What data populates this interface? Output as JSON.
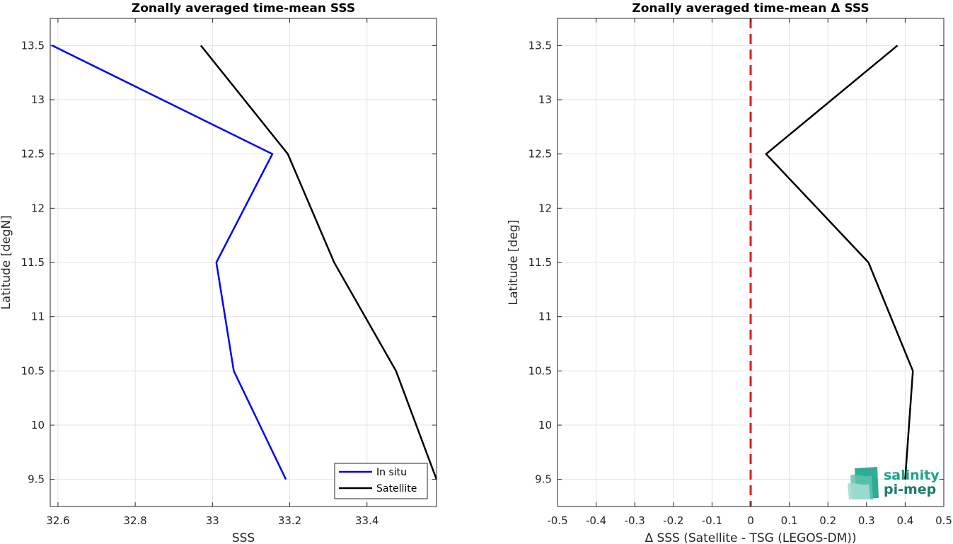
{
  "colors": {
    "in_situ": "#0000ff",
    "satellite": "#000000",
    "zero_line": "#e11a1a",
    "logo": "#1aa38a"
  },
  "logo": {
    "line1": "salinity",
    "line2": "pi-mep",
    "icon": "waves-logo-icon"
  },
  "chart_data": [
    {
      "type": "line",
      "title": "Zonally averaged time-mean SSS",
      "xlabel": "SSS",
      "ylabel": "Latitude [degN]",
      "xlim": [
        32.58,
        33.58
      ],
      "ylim": [
        9.25,
        13.75
      ],
      "xticks": [
        32.6,
        32.8,
        33,
        33.2,
        33.4
      ],
      "xtick_labels": [
        "32.6",
        "32.8",
        "33",
        "33.2",
        "33.4"
      ],
      "yticks": [
        9.5,
        10,
        10.5,
        11,
        11.5,
        12,
        12.5,
        13,
        13.5
      ],
      "ytick_labels": [
        "9.5",
        "10",
        "10.5",
        "11",
        "11.5",
        "12",
        "12.5",
        "13",
        "13.5"
      ],
      "grid": true,
      "legend_location": "bottom-right",
      "series": [
        {
          "name": "In situ",
          "color": "#0000ff",
          "x": [
            33.19,
            33.055,
            33.01,
            33.155,
            32.585
          ],
          "y": [
            9.5,
            10.5,
            11.5,
            12.5,
            13.5
          ]
        },
        {
          "name": "Satellite",
          "color": "#000000",
          "x": [
            33.58,
            33.475,
            33.315,
            33.195,
            32.97
          ],
          "y": [
            9.5,
            10.5,
            11.5,
            12.5,
            13.5
          ]
        }
      ]
    },
    {
      "type": "line",
      "title": "Zonally averaged time-mean Δ SSS",
      "xlabel": "Δ SSS (Satellite - TSG (LEGOS-DM))",
      "ylabel": "Latitude [deg]",
      "xlim": [
        -0.5,
        0.5
      ],
      "ylim": [
        9.25,
        13.75
      ],
      "xticks": [
        -0.5,
        -0.4,
        -0.3,
        -0.2,
        -0.1,
        0,
        0.1,
        0.2,
        0.3,
        0.4,
        0.5
      ],
      "xtick_labels": [
        "-0.5",
        "-0.4",
        "-0.3",
        "-0.2",
        "-0.1",
        "0",
        "0.1",
        "0.2",
        "0.3",
        "0.4",
        "0.5"
      ],
      "yticks": [
        9.5,
        10,
        10.5,
        11,
        11.5,
        12,
        12.5,
        13,
        13.5
      ],
      "ytick_labels": [
        "9.5",
        "10",
        "10.5",
        "11",
        "11.5",
        "12",
        "12.5",
        "13",
        "13.5"
      ],
      "grid": true,
      "reference_line": {
        "x": 0,
        "style": "dashed",
        "color": "#e11a1a"
      },
      "series": [
        {
          "color": "#000000",
          "x": [
            0.4,
            0.42,
            0.305,
            0.04,
            0.38
          ],
          "y": [
            9.5,
            10.5,
            11.5,
            12.5,
            13.5
          ]
        }
      ]
    }
  ]
}
